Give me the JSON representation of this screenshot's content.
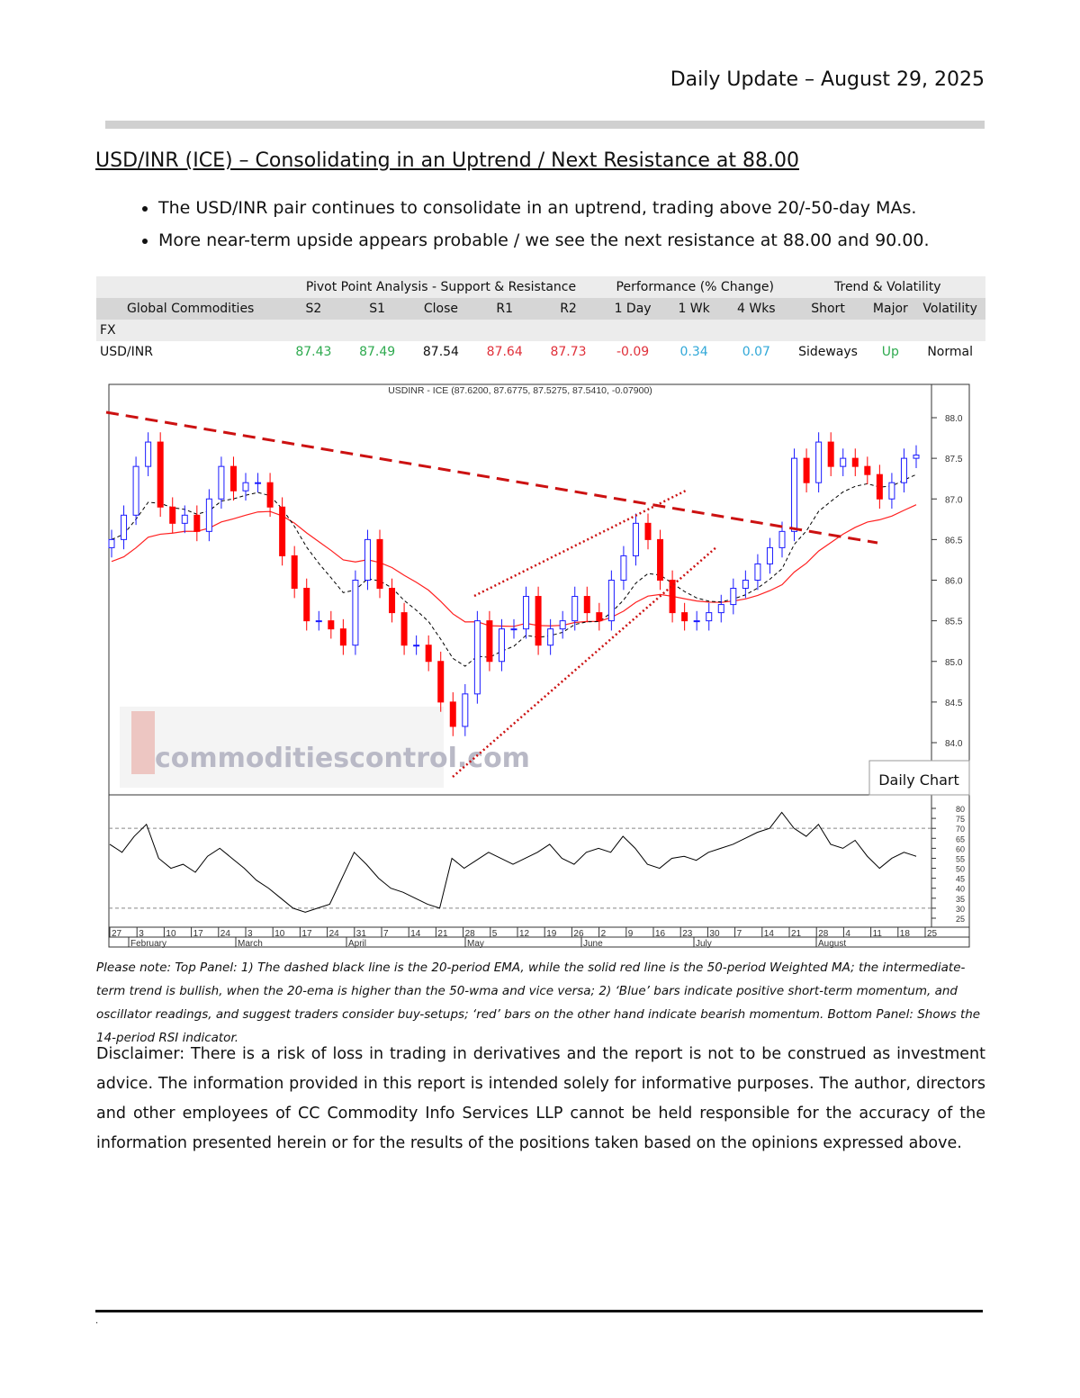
{
  "header": {
    "title": "Daily Update – August 29, 2025"
  },
  "section": {
    "title": "USD/INR (ICE) – Consolidating in an Uptrend / Next Resistance at 88.00",
    "bullets": [
      "The USD/INR pair continues to consolidate in an uptrend, trading above 20/-50-day MAs.",
      "More near-term upside appears probable / we see the next resistance at 88.00 and 90.00."
    ]
  },
  "table": {
    "groups": [
      "Pivot Point Analysis - Support & Resistance",
      "Performance (% Change)",
      "Trend & Volatility"
    ],
    "headers": [
      "Global Commodities",
      "S2",
      "S1",
      "Close",
      "R1",
      "R2",
      "1 Day",
      "1 Wk",
      "4 Wks",
      "Short",
      "Major",
      "Volatility"
    ],
    "section_label": "FX",
    "row": [
      "USD/INR",
      "87.43",
      "87.49",
      "87.54",
      "87.64",
      "87.73",
      "-0.09",
      "0.34",
      "0.07",
      "Sideways",
      "Up",
      "Normal"
    ]
  },
  "colors": {
    "support": "#2eaa4f",
    "resistance": "#e0303a",
    "positive": "#31a8d8",
    "up_candle": "#1a1aff",
    "down_candle": "#ff0000",
    "neutral_candle": "#000000"
  },
  "chart_data": [
    {
      "type": "candlestick",
      "title": "USDINR - ICE (87.6200, 87.6775, 87.5275, 87.5410, -0.07900)",
      "label": "Daily Chart",
      "watermark": "commoditiescontrol.com",
      "ylim": [
        83.6,
        88.3
      ],
      "yticks": [
        "88.0",
        "87.5",
        "87.0",
        "86.5",
        "86.0",
        "85.5",
        "85.0",
        "84.5",
        "84.0"
      ],
      "closes": [
        86.5,
        86.8,
        87.4,
        87.7,
        86.9,
        86.7,
        86.8,
        86.6,
        87.0,
        87.4,
        87.1,
        87.2,
        87.2,
        86.9,
        86.3,
        85.9,
        85.5,
        85.5,
        85.4,
        85.2,
        86.0,
        86.5,
        85.9,
        85.6,
        85.2,
        85.2,
        85.0,
        84.5,
        84.2,
        84.6,
        85.5,
        85.0,
        85.4,
        85.4,
        85.8,
        85.2,
        85.4,
        85.5,
        85.8,
        85.6,
        85.5,
        86.0,
        86.3,
        86.7,
        86.5,
        86.0,
        85.6,
        85.5,
        85.5,
        85.6,
        85.7,
        85.9,
        86.0,
        86.2,
        86.4,
        86.6,
        87.5,
        87.2,
        87.7,
        87.4,
        87.5,
        87.4,
        87.3,
        87.0,
        87.2,
        87.5,
        87.54
      ],
      "series": [
        {
          "name": "20-period EMA"
        },
        {
          "name": "50-period WMA"
        }
      ],
      "date_ticks": [
        "27",
        "3",
        "10",
        "17",
        "24",
        "3",
        "10",
        "17",
        "24",
        "31",
        "7",
        "14",
        "21",
        "28",
        "5",
        "12",
        "19",
        "26",
        "2",
        "9",
        "16",
        "23",
        "30",
        "7",
        "14",
        "21",
        "28",
        "4",
        "11",
        "18",
        "25"
      ],
      "months": [
        "February",
        "March",
        "April",
        "May",
        "June",
        "July",
        "August"
      ]
    },
    {
      "type": "line",
      "title": "14-period RSI",
      "ylim": [
        25,
        80
      ],
      "yticks": [
        "80",
        "75",
        "70",
        "65",
        "60",
        "55",
        "50",
        "45",
        "40",
        "35",
        "30",
        "25"
      ],
      "values": [
        62,
        58,
        66,
        72,
        55,
        50,
        52,
        48,
        56,
        60,
        55,
        50,
        44,
        40,
        35,
        30,
        28,
        30,
        32,
        45,
        58,
        52,
        45,
        40,
        38,
        35,
        32,
        30,
        55,
        50,
        54,
        58,
        55,
        52,
        55,
        58,
        62,
        55,
        52,
        58,
        60,
        58,
        66,
        60,
        52,
        50,
        55,
        56,
        54,
        58,
        60,
        62,
        65,
        68,
        70,
        78,
        70,
        66,
        72,
        62,
        60,
        64,
        56,
        50,
        55,
        58,
        56
      ]
    }
  ],
  "footnote": "Please note: Top Panel: 1) The dashed black line is the 20-period EMA, while the solid red line is the 50-period Weighted MA; the intermediate-term trend is bullish, when the 20-ema is higher than the 50-wma and vice versa; 2)  ‘Blue’  bars indicate positive short-term momentum, and oscillator readings, and suggest traders consider buy-setups;  ‘red’  bars on the other hand indicate bearish momentum. Bottom Panel: Shows the 14-period RSI indicator.",
  "disclaimer": "Disclaimer: There is a risk of loss in trading in derivatives and the report is not to be construed as investment advice. The information provided in this report is intended solely for informative purposes. The author, directors and other employees of CC Commodity Info Services LLP cannot be held responsible for the accuracy of the information presented herein or for the results of the positions taken based on the opinions expressed above.",
  "footer_mark": "."
}
